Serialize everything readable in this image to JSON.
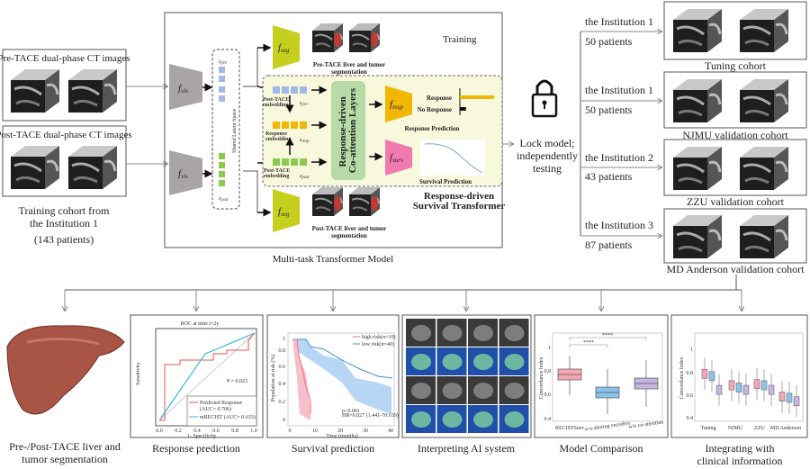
{
  "input": {
    "pre_title": "Pre-TACE dual-phase CT images",
    "post_title": "Post-TACE dual-phase CT images",
    "cohort_line1": "Training cohort from",
    "cohort_line2": "the Institution 1",
    "cohort_count": "(143 patients)"
  },
  "model": {
    "caption": "Multi-task Transformer Model",
    "training": "Training",
    "f_vis": "f",
    "f_vis_sub": "vis",
    "f_seg_sub": "seg",
    "f_resp_sub": "resp",
    "f_surv_sub": "surv",
    "latent_space": "Shared Latent Space",
    "z_pre": "z",
    "z_pre_sub": "pre",
    "z_post_sub": "post",
    "z_resp_sub": "resp",
    "pre_seg_line1": "Pre-TACE liver and tumor",
    "pre_seg_line2": "segmentation",
    "post_seg_line1": "Post-TACE liver and tumor",
    "post_seg_line2": "segmentation",
    "post_embed_top": [
      "Post-TACE",
      "embedding"
    ],
    "resp_embed": [
      "Response",
      "embedding"
    ],
    "post_embed_bottom": [
      "Post-TACE",
      "embedding"
    ],
    "coattention_line1": "Response-driven",
    "coattention_line2": "Co-attention Layers",
    "response": "Response",
    "no_response": "No Response",
    "response_prediction": "Response Prediction",
    "survival_prediction": "Survival Prediction",
    "rdst_line1": "Response-driven",
    "rdst_line2": "Survival Transformer",
    "response_value": 0.85,
    "no_response_value": 0.15
  },
  "lock": {
    "icon": "lock-icon",
    "line1": "Lock model;",
    "line2": "independently",
    "line3": "testing"
  },
  "cohorts": [
    {
      "institution": "the Institution 1",
      "patients": "50 patients",
      "name": "Tuning cohort"
    },
    {
      "institution": "the Institution 1",
      "patients": "50 patients",
      "name": "NJMU validation cohort"
    },
    {
      "institution": "the Institution 2",
      "patients": "43 patients",
      "name": "ZZU validation cohort"
    },
    {
      "institution": "the Institution 3",
      "patients": "87 patients",
      "name": "MD Anderson validation cohort"
    }
  ],
  "panels": {
    "seg": {
      "line1": "Pre-/Post-TACE liver and",
      "line2": "tumor segmentation"
    },
    "roc": {
      "caption": "Response prediction",
      "title": "ROC at time t=2y",
      "ylabel": "Sensitivity",
      "xlabel": "1- Specificity",
      "ticks": [
        "0.0",
        "0.2",
        "0.4",
        "0.6",
        "0.8",
        "1.0"
      ],
      "p": "P = 0.023",
      "legend1": "Predicted Response",
      "legend1b": "(AUC= 0.706)",
      "legend2": "mRECIST (AUC= 0.633)",
      "color1": "#e8564a",
      "color2": "#3cb6e3"
    },
    "km": {
      "caption": "Survival prediction",
      "ylabel": "Population at risk (%)",
      "xlabel": "Time (months)",
      "xticks": [
        "0",
        "10",
        "20",
        "30",
        "40"
      ],
      "yticks": [
        "0",
        "0.2",
        "0.4",
        "0.6",
        "0.8",
        "1"
      ],
      "legend1": "high risk(n=10)",
      "legend2": "low risk(n=40)",
      "stat1": "p<0.001",
      "stat2": "HR=0.027 (1.441-70.639)",
      "color1": "#f0708a",
      "color2": "#3a8fdc"
    },
    "ai": {
      "caption": "Interpreting AI system"
    },
    "comparison": {
      "caption": "Model Comparison",
      "ylabel": "Concordance Index",
      "yticks": [
        "0.4",
        "0.6",
        "0.8",
        "1"
      ],
      "categories": [
        "RECISTSurv",
        "w/o sharing encoders",
        "w/o co-attention"
      ],
      "sig": "****"
    },
    "clinical": {
      "caption_line1": "Integrating with",
      "caption_line2": "clinical information",
      "ylabel": "Concordance Index",
      "yticks": [
        "0.4",
        "0.6",
        "0.8",
        "1"
      ],
      "categories": [
        "Tuning",
        "NJMU",
        "ZZU",
        "MD Anderson"
      ]
    }
  }
}
